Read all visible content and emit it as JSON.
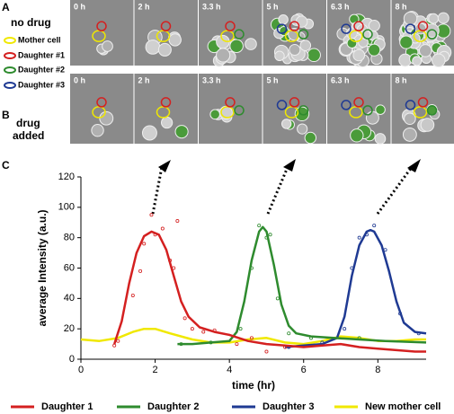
{
  "panel_a": {
    "label": "A",
    "condition": "no drug",
    "times": [
      "0 h",
      "2 h",
      "3.3 h",
      "5 h",
      "6.3 h",
      "8 h"
    ]
  },
  "cell_legend": [
    "Mother cell",
    "Daughter #1",
    "Daughter #2",
    "Daughter #3"
  ],
  "panel_b": {
    "label": "B",
    "condition": "drug added",
    "times": [
      "0 h",
      "2 h",
      "3.3 h",
      "5 h",
      "6.3 h",
      "8 h"
    ]
  },
  "panel_c": {
    "label": "C"
  },
  "chart_data": {
    "type": "line",
    "x_label": "time (hr)",
    "y_label": "average Intensity (a.u.)",
    "xlim": [
      0,
      9.3
    ],
    "xticks": [
      0,
      2,
      4,
      6,
      8
    ],
    "ylim": [
      0,
      120
    ],
    "yticks": [
      0,
      20,
      40,
      60,
      80,
      100,
      120
    ],
    "series": [
      {
        "name": "Daughter 1",
        "color": "#d42020",
        "x": [
          0.9,
          1.1,
          1.3,
          1.5,
          1.7,
          1.9,
          2.1,
          2.3,
          2.5,
          2.7,
          2.9,
          3.2,
          3.6,
          4.0,
          4.5,
          5.0,
          5.5,
          6.0,
          6.5,
          7.0,
          7.5,
          8.0,
          8.5,
          9.0,
          9.3
        ],
        "values": [
          10,
          25,
          50,
          70,
          81,
          84,
          82,
          72,
          55,
          38,
          28,
          21,
          18,
          16,
          12,
          10,
          9,
          8,
          9,
          10,
          8,
          7,
          6,
          5,
          5
        ],
        "points": {
          "x": [
            0.9,
            1.0,
            1.4,
            1.6,
            1.7,
            1.9,
            2.0,
            2.2,
            2.4,
            2.5,
            2.6,
            2.8,
            3.0,
            3.3,
            3.6,
            4.2,
            4.6,
            5.0,
            5.5
          ],
          "values": [
            9,
            12,
            42,
            58,
            76,
            95,
            82,
            86,
            65,
            60,
            91,
            27,
            20,
            18,
            19,
            10,
            14,
            5,
            8
          ]
        }
      },
      {
        "name": "Daughter 2",
        "color": "#2e8b2e",
        "x": [
          2.6,
          3.0,
          3.5,
          4.0,
          4.2,
          4.4,
          4.6,
          4.8,
          4.9,
          5.0,
          5.2,
          5.4,
          5.6,
          5.8,
          6.2,
          6.8,
          7.5,
          8.2,
          9.3
        ],
        "values": [
          10,
          10,
          11,
          12,
          18,
          38,
          65,
          84,
          87,
          84,
          62,
          36,
          22,
          17,
          15,
          14,
          13,
          12,
          11
        ],
        "points": {
          "x": [
            2.7,
            3.5,
            4.3,
            4.6,
            4.8,
            5.0,
            5.1,
            5.3,
            5.6,
            6.2,
            7.5
          ],
          "values": [
            10,
            11,
            20,
            60,
            88,
            80,
            82,
            40,
            17,
            14,
            14
          ]
        }
      },
      {
        "name": "Daughter 3",
        "color": "#1f3a93",
        "x": [
          5.5,
          6.0,
          6.5,
          6.9,
          7.1,
          7.3,
          7.5,
          7.7,
          7.8,
          7.9,
          8.1,
          8.3,
          8.5,
          8.7,
          9.0,
          9.3
        ],
        "values": [
          8,
          9,
          10,
          14,
          28,
          55,
          75,
          84,
          85,
          84,
          75,
          58,
          38,
          24,
          18,
          17
        ],
        "points": {
          "x": [
            5.6,
            6.5,
            7.1,
            7.3,
            7.5,
            7.7,
            7.9,
            8.2,
            8.6,
            9.1
          ],
          "values": [
            8,
            11,
            20,
            60,
            80,
            82,
            88,
            72,
            30,
            17
          ]
        }
      },
      {
        "name": "New mother cell",
        "color": "#f0e800",
        "x": [
          0,
          0.5,
          1.0,
          1.4,
          1.7,
          2.0,
          2.4,
          3.0,
          3.5,
          4.0,
          4.5,
          5.0,
          5.5,
          6.0,
          6.5,
          7.0,
          7.5,
          8.0,
          8.5,
          9.0,
          9.3
        ],
        "values": [
          13,
          12,
          14,
          18,
          20,
          20,
          17,
          13,
          11,
          11,
          13,
          14,
          11,
          10,
          12,
          15,
          14,
          12,
          12,
          13,
          13
        ]
      }
    ]
  }
}
